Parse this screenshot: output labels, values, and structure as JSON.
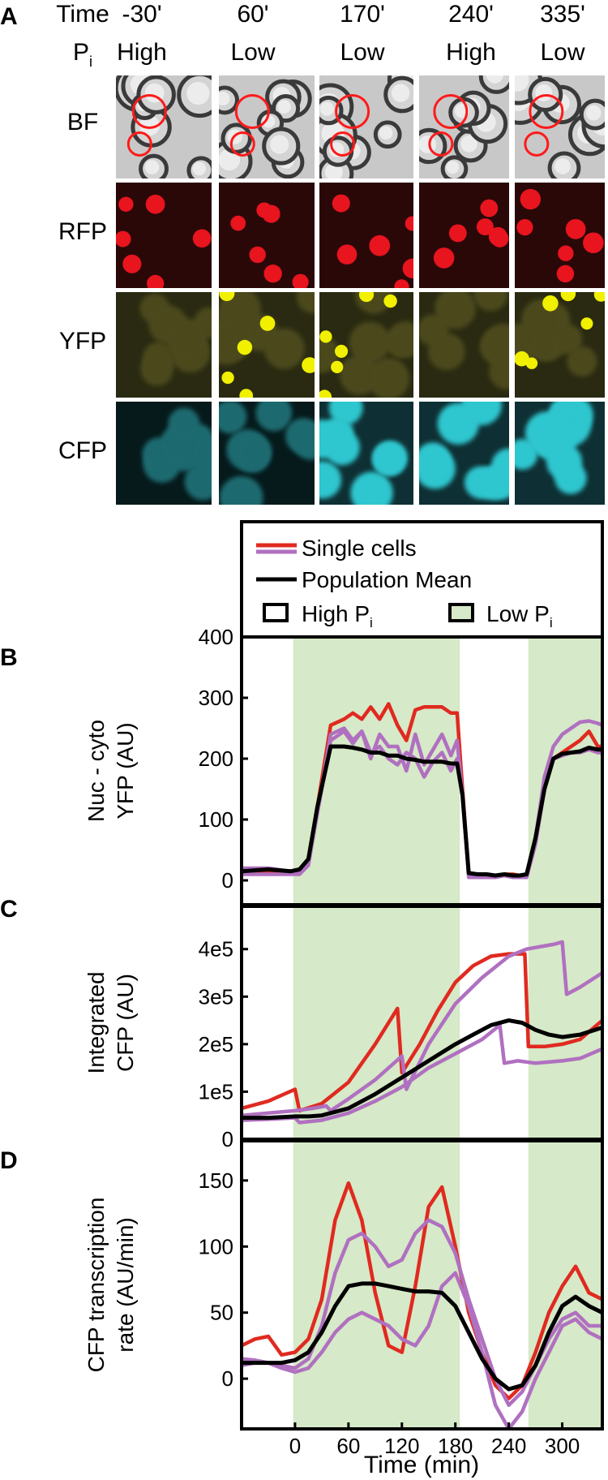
{
  "panel_letters": {
    "a": "A",
    "b": "B",
    "c": "C",
    "d": "D"
  },
  "header": {
    "time_label": "Time",
    "pi_label_main": "P",
    "pi_label_sub": "i",
    "timepoints": [
      {
        "time": "-30'",
        "pi": "High"
      },
      {
        "time": "60'",
        "pi": "Low"
      },
      {
        "time": "170'",
        "pi": "Low"
      },
      {
        "time": "240'",
        "pi": "High"
      },
      {
        "time": "335'",
        "pi": "Low"
      }
    ]
  },
  "channels": [
    {
      "label": "BF",
      "color": "#b4b4b4"
    },
    {
      "label": "RFP",
      "color": "#e8141e"
    },
    {
      "label": "YFP",
      "color": "#f0f000"
    },
    {
      "label": "CFP",
      "color": "#28d2dc"
    }
  ],
  "legend": {
    "single_cells": "Single cells",
    "population_mean": "Population Mean",
    "high_pi_main": "High P",
    "high_pi_sub": "i",
    "low_pi_main": "Low P",
    "low_pi_sub": "i"
  },
  "colors": {
    "red": "#e02a20",
    "purple": "#b070c0",
    "black": "#000000",
    "low_pi_shade": "#d6e9c8"
  },
  "chart_data": [
    {
      "type": "line",
      "panel": "B",
      "ylabel_line1": "Nuc - cyto",
      "ylabel_line2": "YFP (AU)",
      "xlim": [
        -60,
        345
      ],
      "ylim": [
        -40,
        400
      ],
      "yticks": [
        "0",
        "100",
        "200",
        "300",
        "400"
      ],
      "ytick_values": [
        0,
        100,
        200,
        300,
        400
      ],
      "low_pi_intervals": [
        [
          -2,
          185
        ],
        [
          262,
          345
        ]
      ],
      "series": [
        {
          "name": "Single cell 1",
          "color": "red",
          "x": [
            -60,
            -30,
            -5,
            5,
            15,
            25,
            40,
            55,
            65,
            75,
            85,
            95,
            105,
            115,
            125,
            135,
            145,
            155,
            165,
            175,
            182,
            188,
            195,
            205,
            215,
            225,
            235,
            245,
            252,
            260,
            270,
            280,
            290,
            300,
            310,
            320,
            330,
            340,
            345
          ],
          "y": [
            15,
            15,
            15,
            15,
            30,
            120,
            255,
            265,
            275,
            265,
            285,
            265,
            290,
            255,
            230,
            280,
            285,
            285,
            285,
            275,
            275,
            150,
            10,
            10,
            8,
            8,
            10,
            10,
            8,
            10,
            70,
            160,
            200,
            210,
            220,
            230,
            245,
            220,
            220
          ]
        },
        {
          "name": "Single cell 2",
          "color": "purple",
          "x": [
            -60,
            -30,
            -5,
            5,
            15,
            25,
            40,
            55,
            65,
            75,
            85,
            95,
            105,
            115,
            125,
            135,
            145,
            155,
            165,
            175,
            182,
            188,
            195,
            205,
            215,
            225,
            235,
            245,
            252,
            260,
            270,
            280,
            290,
            300,
            310,
            320,
            330,
            340,
            345
          ],
          "y": [
            10,
            10,
            10,
            10,
            25,
            110,
            240,
            250,
            230,
            245,
            200,
            240,
            220,
            220,
            180,
            240,
            190,
            215,
            240,
            205,
            230,
            140,
            10,
            5,
            5,
            5,
            8,
            5,
            5,
            5,
            70,
            170,
            220,
            240,
            250,
            260,
            262,
            258,
            255
          ]
        },
        {
          "name": "Single cell 3",
          "color": "purple",
          "x": [
            -60,
            -30,
            -5,
            5,
            15,
            25,
            40,
            55,
            65,
            75,
            85,
            95,
            105,
            115,
            125,
            135,
            145,
            155,
            165,
            175,
            182,
            188,
            195,
            205,
            215,
            225,
            235,
            245,
            252,
            260,
            270,
            280,
            290,
            300,
            310,
            320,
            330,
            340,
            345
          ],
          "y": [
            20,
            20,
            15,
            15,
            30,
            110,
            230,
            245,
            225,
            245,
            210,
            220,
            200,
            190,
            210,
            200,
            170,
            195,
            210,
            180,
            200,
            140,
            5,
            5,
            5,
            8,
            8,
            5,
            5,
            5,
            60,
            150,
            200,
            205,
            210,
            210,
            215,
            210,
            210
          ]
        },
        {
          "name": "Population Mean",
          "color": "black",
          "x": [
            -60,
            -30,
            -5,
            5,
            15,
            25,
            40,
            55,
            65,
            75,
            85,
            95,
            105,
            115,
            125,
            135,
            145,
            155,
            165,
            175,
            182,
            188,
            195,
            205,
            215,
            225,
            235,
            245,
            252,
            260,
            270,
            280,
            290,
            300,
            310,
            320,
            330,
            340,
            345
          ],
          "y": [
            15,
            18,
            15,
            18,
            35,
            120,
            220,
            220,
            218,
            215,
            210,
            210,
            205,
            205,
            200,
            198,
            195,
            195,
            195,
            192,
            192,
            140,
            12,
            10,
            10,
            8,
            10,
            8,
            8,
            10,
            70,
            150,
            200,
            208,
            210,
            212,
            218,
            215,
            215
          ]
        }
      ]
    },
    {
      "type": "line",
      "panel": "C",
      "ylabel_line1": "Integrated",
      "ylabel_line2": "CFP (AU)",
      "xlim": [
        -60,
        345
      ],
      "ylim": [
        0,
        490000
      ],
      "yticks": [
        "0",
        "1e5",
        "2e5",
        "3e5",
        "4e5"
      ],
      "ytick_values": [
        0,
        100000,
        200000,
        300000,
        400000
      ],
      "low_pi_intervals": [
        [
          -2,
          185
        ],
        [
          262,
          345
        ]
      ],
      "series": [
        {
          "name": "Single cell 1",
          "color": "red",
          "x": [
            -60,
            -30,
            0,
            5,
            30,
            60,
            90,
            115,
            120,
            140,
            160,
            180,
            200,
            220,
            240,
            258,
            262,
            280,
            300,
            320,
            345
          ],
          "y": [
            65000,
            80000,
            105000,
            60000,
            75000,
            120000,
            200000,
            275000,
            140000,
            200000,
            270000,
            330000,
            365000,
            385000,
            390000,
            390000,
            195000,
            195000,
            200000,
            210000,
            250000
          ]
        },
        {
          "name": "Single cell 2",
          "color": "purple",
          "x": [
            -60,
            -30,
            0,
            20,
            35,
            40,
            60,
            90,
            120,
            125,
            150,
            180,
            210,
            240,
            260,
            290,
            300,
            305,
            320,
            345
          ],
          "y": [
            50000,
            55000,
            60000,
            65000,
            70000,
            60000,
            85000,
            125000,
            175000,
            105000,
            200000,
            285000,
            340000,
            385000,
            400000,
            410000,
            415000,
            305000,
            320000,
            350000
          ]
        },
        {
          "name": "Single cell 3",
          "color": "purple",
          "x": [
            -60,
            -30,
            0,
            5,
            30,
            60,
            90,
            120,
            150,
            180,
            210,
            230,
            235,
            250,
            270,
            300,
            320,
            345
          ],
          "y": [
            40000,
            42000,
            45000,
            35000,
            40000,
            55000,
            80000,
            110000,
            150000,
            180000,
            210000,
            240000,
            160000,
            165000,
            160000,
            165000,
            170000,
            190000
          ]
        },
        {
          "name": "Population Mean",
          "color": "black",
          "x": [
            -60,
            -30,
            0,
            15,
            30,
            60,
            90,
            120,
            150,
            180,
            200,
            220,
            240,
            255,
            270,
            285,
            300,
            320,
            345
          ],
          "y": [
            45000,
            45000,
            48000,
            48000,
            50000,
            65000,
            95000,
            130000,
            165000,
            200000,
            220000,
            240000,
            250000,
            245000,
            230000,
            220000,
            215000,
            220000,
            235000
          ]
        }
      ]
    },
    {
      "type": "line",
      "panel": "D",
      "ylabel_line1": "CFP transcription",
      "ylabel_line2": "rate (AU/min)",
      "xlabel": "Time (min)",
      "xlim": [
        -60,
        345
      ],
      "ylim": [
        -38,
        180
      ],
      "yticks": [
        "0",
        "50",
        "100",
        "150"
      ],
      "ytick_values": [
        0,
        50,
        100,
        150
      ],
      "xticks": [
        "0",
        "60",
        "120",
        "180",
        "240",
        "300"
      ],
      "xtick_values": [
        0,
        60,
        120,
        180,
        240,
        300
      ],
      "low_pi_intervals": [
        [
          -2,
          185
        ],
        [
          262,
          345
        ]
      ],
      "series": [
        {
          "name": "Single cell 1",
          "color": "red",
          "x": [
            -60,
            -45,
            -30,
            -15,
            0,
            15,
            30,
            45,
            60,
            75,
            90,
            105,
            120,
            135,
            150,
            165,
            180,
            195,
            210,
            225,
            240,
            255,
            270,
            285,
            300,
            315,
            330,
            345
          ],
          "y": [
            25,
            30,
            32,
            18,
            20,
            30,
            60,
            120,
            148,
            120,
            65,
            25,
            20,
            70,
            130,
            145,
            100,
            50,
            20,
            -5,
            -15,
            -5,
            20,
            50,
            70,
            85,
            65,
            60
          ]
        },
        {
          "name": "Single cell 2",
          "color": "purple",
          "x": [
            -60,
            -45,
            -30,
            -15,
            0,
            15,
            30,
            45,
            60,
            75,
            90,
            105,
            120,
            135,
            150,
            165,
            180,
            195,
            210,
            225,
            240,
            255,
            270,
            285,
            300,
            315,
            330,
            345
          ],
          "y": [
            10,
            12,
            12,
            10,
            8,
            15,
            40,
            80,
            105,
            110,
            100,
            85,
            90,
            110,
            120,
            115,
            95,
            60,
            30,
            0,
            -20,
            -10,
            10,
            30,
            45,
            50,
            40,
            40
          ]
        },
        {
          "name": "Single cell 3",
          "color": "purple",
          "x": [
            -60,
            -45,
            -30,
            -15,
            0,
            15,
            30,
            45,
            60,
            75,
            90,
            105,
            120,
            135,
            150,
            165,
            180,
            195,
            210,
            225,
            240,
            255,
            270,
            285,
            300,
            315,
            330,
            345
          ],
          "y": [
            15,
            14,
            12,
            8,
            5,
            8,
            20,
            35,
            45,
            50,
            45,
            40,
            30,
            25,
            40,
            70,
            80,
            55,
            20,
            -20,
            -38,
            -25,
            0,
            20,
            40,
            45,
            35,
            30
          ]
        },
        {
          "name": "Population Mean",
          "color": "black",
          "x": [
            -60,
            -45,
            -30,
            -15,
            0,
            15,
            30,
            45,
            60,
            75,
            90,
            105,
            120,
            135,
            150,
            165,
            180,
            195,
            210,
            225,
            240,
            255,
            270,
            285,
            300,
            315,
            330,
            345
          ],
          "y": [
            12,
            12,
            12,
            12,
            14,
            20,
            35,
            55,
            70,
            72,
            72,
            70,
            68,
            66,
            66,
            65,
            55,
            35,
            15,
            0,
            -8,
            -5,
            10,
            35,
            55,
            62,
            55,
            50
          ]
        }
      ]
    }
  ]
}
